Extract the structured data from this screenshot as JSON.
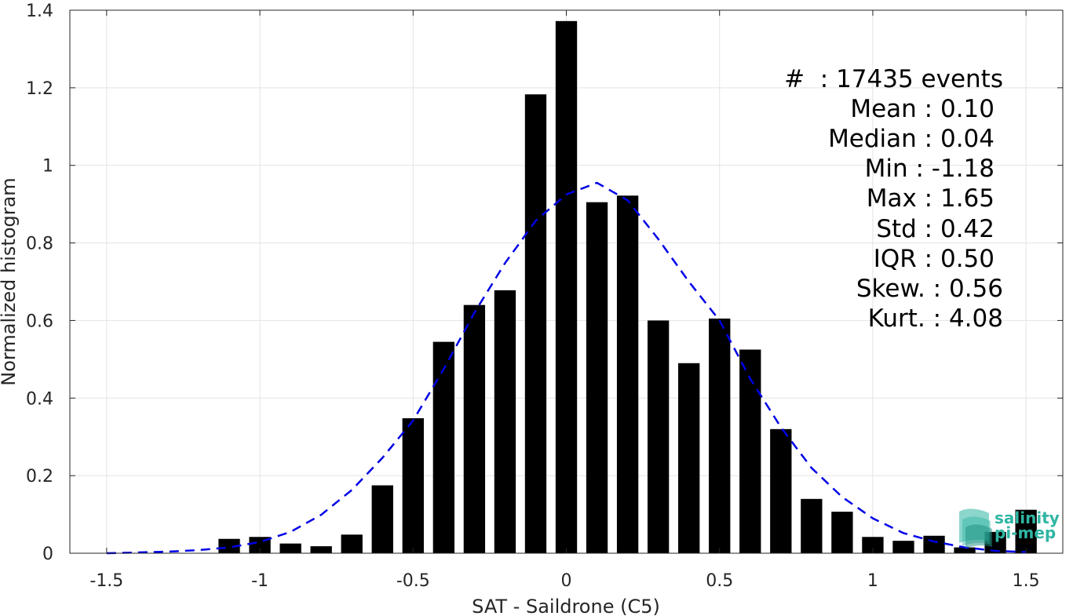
{
  "chart_data": {
    "type": "bar",
    "xlabel": "SAT - Saildrone (C5)",
    "ylabel": "Normalized histogram",
    "xlim": [
      -1.62,
      1.62
    ],
    "ylim": [
      0,
      1.4
    ],
    "xticks": [
      -1.5,
      -1,
      -0.5,
      0,
      0.5,
      1,
      1.5
    ],
    "xtick_labels": [
      "-1.5",
      "-1",
      "-0.5",
      "0",
      "0.5",
      "1",
      "1.5"
    ],
    "yticks": [
      0,
      0.2,
      0.4,
      0.6,
      0.8,
      1,
      1.2,
      1.4
    ],
    "ytick_labels": [
      "0",
      "0.2",
      "0.4",
      "0.6",
      "0.8",
      "1",
      "1.2",
      "1.4"
    ],
    "grid": true,
    "bar_width": 0.07,
    "bars": {
      "x": [
        -1.1,
        -1.0,
        -0.9,
        -0.8,
        -0.7,
        -0.6,
        -0.5,
        -0.4,
        -0.3,
        -0.2,
        -0.1,
        0.0,
        0.1,
        0.2,
        0.3,
        0.4,
        0.5,
        0.6,
        0.7,
        0.8,
        0.9,
        1.0,
        1.1,
        1.2,
        1.3,
        1.4,
        1.5
      ],
      "values": [
        0.037,
        0.042,
        0.025,
        0.018,
        0.048,
        0.175,
        0.348,
        0.545,
        0.64,
        0.678,
        1.183,
        1.372,
        0.905,
        0.922,
        0.6,
        0.49,
        0.605,
        0.525,
        0.32,
        0.14,
        0.107,
        0.042,
        0.032,
        0.045,
        0.015,
        0.055,
        0.112
      ],
      "color": "#000000"
    },
    "fit_curve": {
      "style": "dashed",
      "color": "#0000e6",
      "x": [
        -1.5,
        -1.4,
        -1.3,
        -1.2,
        -1.1,
        -1.0,
        -0.9,
        -0.8,
        -0.7,
        -0.6,
        -0.5,
        -0.4,
        -0.3,
        -0.2,
        -0.1,
        0.0,
        0.1,
        0.2,
        0.3,
        0.4,
        0.5,
        0.6,
        0.7,
        0.8,
        0.9,
        1.0,
        1.1,
        1.2,
        1.3,
        1.4,
        1.5
      ],
      "y": [
        0.0,
        0.002,
        0.004,
        0.008,
        0.015,
        0.029,
        0.055,
        0.099,
        0.163,
        0.246,
        0.342,
        0.475,
        0.62,
        0.748,
        0.857,
        0.925,
        0.955,
        0.91,
        0.81,
        0.7,
        0.6,
        0.45,
        0.325,
        0.22,
        0.145,
        0.09,
        0.052,
        0.03,
        0.015,
        0.006,
        0.003
      ]
    }
  },
  "stats": {
    "lines": [
      "#  : 17435 events",
      "Mean : 0.10",
      "Median : 0.04",
      "Min : -1.18",
      "Max : 1.65",
      "Std : 0.42",
      "IQR : 0.50",
      "Skew. : 0.56",
      "Kurt. : 4.08"
    ]
  },
  "logo": {
    "line1": "salinity",
    "line2": "pi-mep"
  }
}
